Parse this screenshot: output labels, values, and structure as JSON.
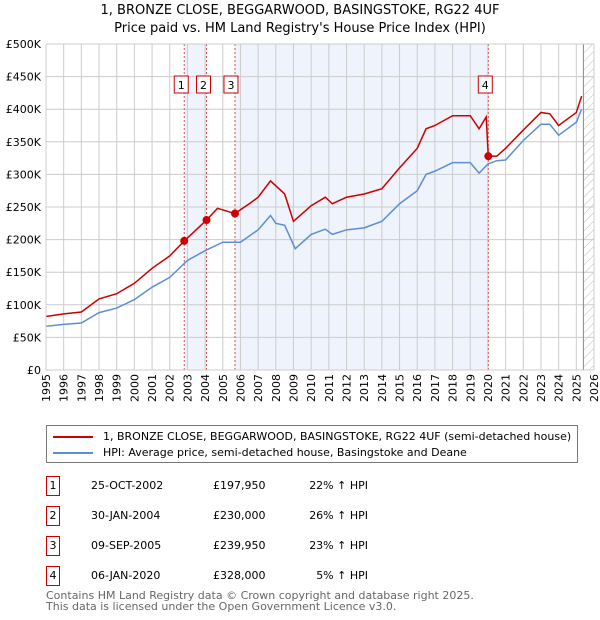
{
  "title": "1, BRONZE CLOSE, BEGGARWOOD, BASINGSTOKE, RG22 4UF",
  "subtitle": "Price paid vs. HM Land Registry's House Price Index (HPI)",
  "chart_data": {
    "type": "line",
    "xlim": [
      1995,
      2026
    ],
    "ylim": [
      0,
      500000
    ],
    "y_ticks": [
      {
        "v": 0,
        "label": "£0"
      },
      {
        "v": 50000,
        "label": "£50K"
      },
      {
        "v": 100000,
        "label": "£100K"
      },
      {
        "v": 150000,
        "label": "£150K"
      },
      {
        "v": 200000,
        "label": "£200K"
      },
      {
        "v": 250000,
        "label": "£250K"
      },
      {
        "v": 300000,
        "label": "£300K"
      },
      {
        "v": 350000,
        "label": "£350K"
      },
      {
        "v": 400000,
        "label": "£400K"
      },
      {
        "v": 450000,
        "label": "£450K"
      },
      {
        "v": 500000,
        "label": "£500K"
      }
    ],
    "x_ticks": [
      "1995",
      "1996",
      "1997",
      "1998",
      "1999",
      "2000",
      "2001",
      "2002",
      "2003",
      "2004",
      "2005",
      "2006",
      "2007",
      "2008",
      "2009",
      "2010",
      "2011",
      "2012",
      "2013",
      "2014",
      "2015",
      "2016",
      "2017",
      "2018",
      "2019",
      "2020",
      "2021",
      "2022",
      "2023",
      "2024",
      "2025",
      "2026"
    ],
    "grid": true,
    "series": [
      {
        "name": "1, BRONZE CLOSE, BEGGARWOOD, BASINGSTOKE, RG22 4UF (semi-detached house)",
        "color": "#cc0000",
        "x": [
          1995,
          1996,
          1997,
          1998,
          1999,
          2000,
          2001,
          2002,
          2002.82,
          2003.3,
          2004.08,
          2004.7,
          2005.69,
          2006.5,
          2007,
          2007.7,
          2008.5,
          2009,
          2010,
          2010.8,
          2011.2,
          2012,
          2013,
          2014,
          2015,
          2016,
          2016.5,
          2017,
          2018,
          2019,
          2019.5,
          2019.9,
          2020.02,
          2020.5,
          2021,
          2022,
          2023,
          2023.5,
          2024,
          2025,
          2025.3
        ],
        "y": [
          82000,
          86000,
          89000,
          109000,
          117000,
          133000,
          156000,
          175000,
          197950,
          210000,
          230000,
          248000,
          239950,
          255000,
          265000,
          290000,
          270000,
          228000,
          252000,
          265000,
          255000,
          265000,
          270000,
          278000,
          310000,
          340000,
          370000,
          375000,
          390000,
          390000,
          370000,
          388000,
          328000,
          328000,
          340000,
          368000,
          395000,
          393000,
          375000,
          395000,
          420000
        ]
      },
      {
        "name": "HPI: Average price, semi-detached house, Basingstoke and Deane",
        "color": "#5b8fd4",
        "x": [
          1995,
          1996,
          1997,
          1998,
          1999,
          2000,
          2001,
          2002,
          2003,
          2004,
          2005,
          2006,
          2007,
          2007.7,
          2008,
          2008.5,
          2009.1,
          2010,
          2010.8,
          2011.2,
          2012,
          2013,
          2014,
          2015,
          2016,
          2016.5,
          2017,
          2018,
          2019,
          2019.5,
          2020,
          2020.5,
          2021,
          2022,
          2023,
          2023.5,
          2024,
          2025,
          2025.3
        ],
        "y": [
          67000,
          70000,
          72000,
          88000,
          95000,
          108000,
          127000,
          142000,
          168000,
          183000,
          196000,
          196000,
          215000,
          237000,
          225000,
          222000,
          186000,
          208000,
          216000,
          208000,
          215000,
          218000,
          228000,
          255000,
          275000,
          300000,
          305000,
          318000,
          318000,
          302000,
          316000,
          321000,
          322000,
          352000,
          377000,
          377000,
          360000,
          380000,
          400000
        ]
      }
    ],
    "sales": [
      {
        "n": "1",
        "x": 2002.82,
        "y": 197950,
        "date": "25-OCT-2002",
        "price": "£197,950",
        "hpi": "22% ↑ HPI"
      },
      {
        "n": "2",
        "x": 2004.08,
        "y": 230000,
        "date": "30-JAN-2004",
        "price": "£230,000",
        "hpi": "26% ↑ HPI"
      },
      {
        "n": "3",
        "x": 2005.69,
        "y": 239950,
        "date": "09-SEP-2005",
        "price": "£239,950",
        "hpi": "23% ↑ HPI"
      },
      {
        "n": "4",
        "x": 2020.02,
        "y": 328000,
        "date": "06-JAN-2020",
        "price": "£328,000",
        "hpi": "5% ↑ HPI"
      }
    ],
    "shaded": [
      [
        2002.82,
        2004.08
      ],
      [
        2005.69,
        2020.02
      ]
    ],
    "forecast_from": 2025.4
  },
  "legend": {
    "line1": "1, BRONZE CLOSE, BEGGARWOOD, BASINGSTOKE, RG22 4UF (semi-detached house)",
    "line2": "HPI: Average price, semi-detached house, Basingstoke and Deane"
  },
  "footer": {
    "line1": "Contains HM Land Registry data © Crown copyright and database right 2025.",
    "line2": "This data is licensed under the Open Government Licence v3.0."
  }
}
